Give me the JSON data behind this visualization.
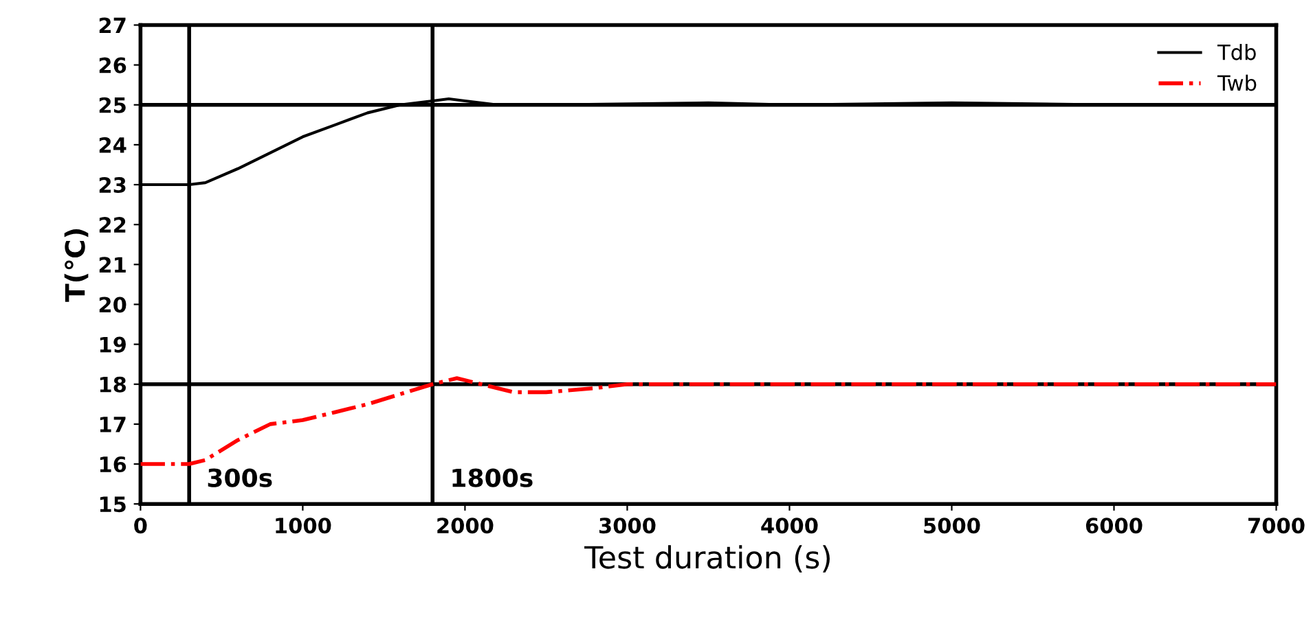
{
  "chart_data": {
    "type": "line",
    "xlabel": "Test duration (s)",
    "ylabel": "T(℃)",
    "xlim": [
      0,
      7000
    ],
    "xticks": [
      0,
      1000,
      2000,
      3000,
      4000,
      5000,
      6000,
      7000
    ],
    "ylim": [
      15,
      27
    ],
    "yticks": [
      15,
      16,
      17,
      18,
      19,
      20,
      21,
      22,
      23,
      24,
      25,
      26,
      27
    ],
    "grid": false,
    "legend": "top right",
    "series": [
      {
        "name": "Tdb",
        "color": "#000000",
        "line_style": "solid",
        "x": [
          0,
          300,
          400,
          600,
          800,
          1000,
          1200,
          1400,
          1600,
          1800,
          1900,
          2000,
          2200,
          2500,
          3500,
          4000,
          5000,
          6000,
          7000
        ],
        "values": [
          23,
          23,
          23.05,
          23.4,
          23.8,
          24.2,
          24.5,
          24.8,
          25.0,
          25.1,
          25.15,
          25.1,
          25.0,
          25.0,
          25.05,
          25.0,
          25.05,
          25.0,
          25.0
        ]
      },
      {
        "name": "Twb",
        "color": "#ff0000",
        "line_style": "dashdot",
        "x": [
          0,
          300,
          400,
          600,
          800,
          1000,
          1200,
          1400,
          1600,
          1800,
          1950,
          2100,
          2300,
          2500,
          2800,
          3000,
          4000,
          7000
        ],
        "values": [
          16,
          16,
          16.1,
          16.6,
          17.0,
          17.1,
          17.3,
          17.5,
          17.75,
          18.0,
          18.15,
          18.0,
          17.8,
          17.8,
          17.9,
          18.0,
          18.0,
          18.0
        ]
      }
    ],
    "ref_lines": [
      {
        "axis": "x",
        "value": 300,
        "label": "300s",
        "color": "#000000"
      },
      {
        "axis": "x",
        "value": 1800,
        "label": "1800s",
        "color": "#000000"
      },
      {
        "axis": "y",
        "value": 25,
        "color": "#000000"
      },
      {
        "axis": "y",
        "value": 18,
        "color": "#000000"
      }
    ]
  }
}
